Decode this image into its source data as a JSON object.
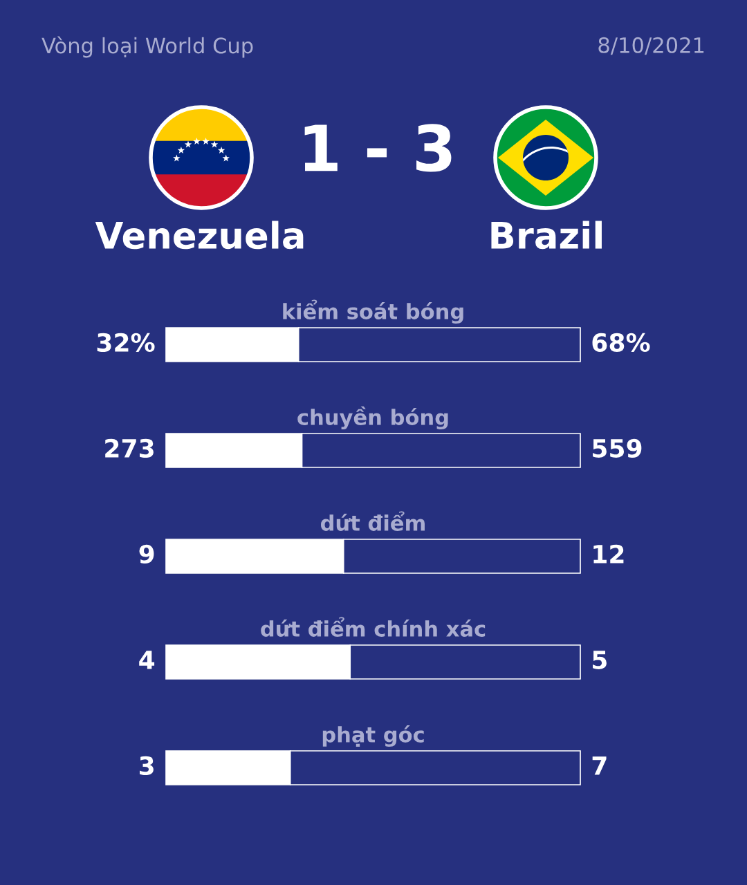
{
  "chart_data": [
    {
      "type": "other",
      "title": "Vòng loại World Cup",
      "annotations": [
        "8/10/2021",
        "Venezuela",
        "1 - 3",
        "Brazil"
      ]
    },
    {
      "type": "bar",
      "orientation": "horizontal",
      "stacked": true,
      "title": "kiểm soát bóng",
      "categories": [
        null
      ],
      "xlim": [
        0,
        100
      ],
      "tick_labels": false,
      "series": [
        {
          "color": "#ffffff",
          "values": [
            32
          ],
          "value_labels": [
            "32%"
          ]
        },
        {
          "color": "#26307f",
          "values": [
            68
          ],
          "value_labels": [
            "68%"
          ]
        }
      ]
    },
    {
      "type": "bar",
      "orientation": "horizontal",
      "stacked": true,
      "title": "chuyền bóng",
      "categories": [
        null
      ],
      "xlim": [
        0,
        832
      ],
      "tick_labels": false,
      "data_labels": true,
      "series": [
        {
          "color": "#ffffff",
          "values": [
            273
          ]
        },
        {
          "color": "#26307f",
          "values": [
            559
          ]
        }
      ]
    },
    {
      "type": "bar",
      "orientation": "horizontal",
      "stacked": true,
      "title": "dứt điểm",
      "categories": [
        null
      ],
      "xlim": [
        0,
        21
      ],
      "tick_labels": false,
      "data_labels": true,
      "series": [
        {
          "color": "#ffffff",
          "values": [
            9
          ]
        },
        {
          "color": "#26307f",
          "values": [
            12
          ]
        }
      ]
    },
    {
      "type": "bar",
      "orientation": "horizontal",
      "stacked": true,
      "title": "dứt điểm chính xác",
      "categories": [
        null
      ],
      "xlim": [
        0,
        9
      ],
      "tick_labels": false,
      "data_labels": true,
      "series": [
        {
          "color": "#ffffff",
          "values": [
            4
          ]
        },
        {
          "color": "#26307f",
          "values": [
            5
          ]
        }
      ]
    },
    {
      "type": "bar",
      "orientation": "horizontal",
      "stacked": true,
      "title": "phạt góc",
      "categories": [
        null
      ],
      "xlim": [
        0,
        10
      ],
      "tick_labels": false,
      "data_labels": true,
      "series": [
        {
          "color": "#ffffff",
          "values": [
            3
          ]
        },
        {
          "color": "#26307f",
          "values": [
            7
          ]
        }
      ]
    }
  ]
}
